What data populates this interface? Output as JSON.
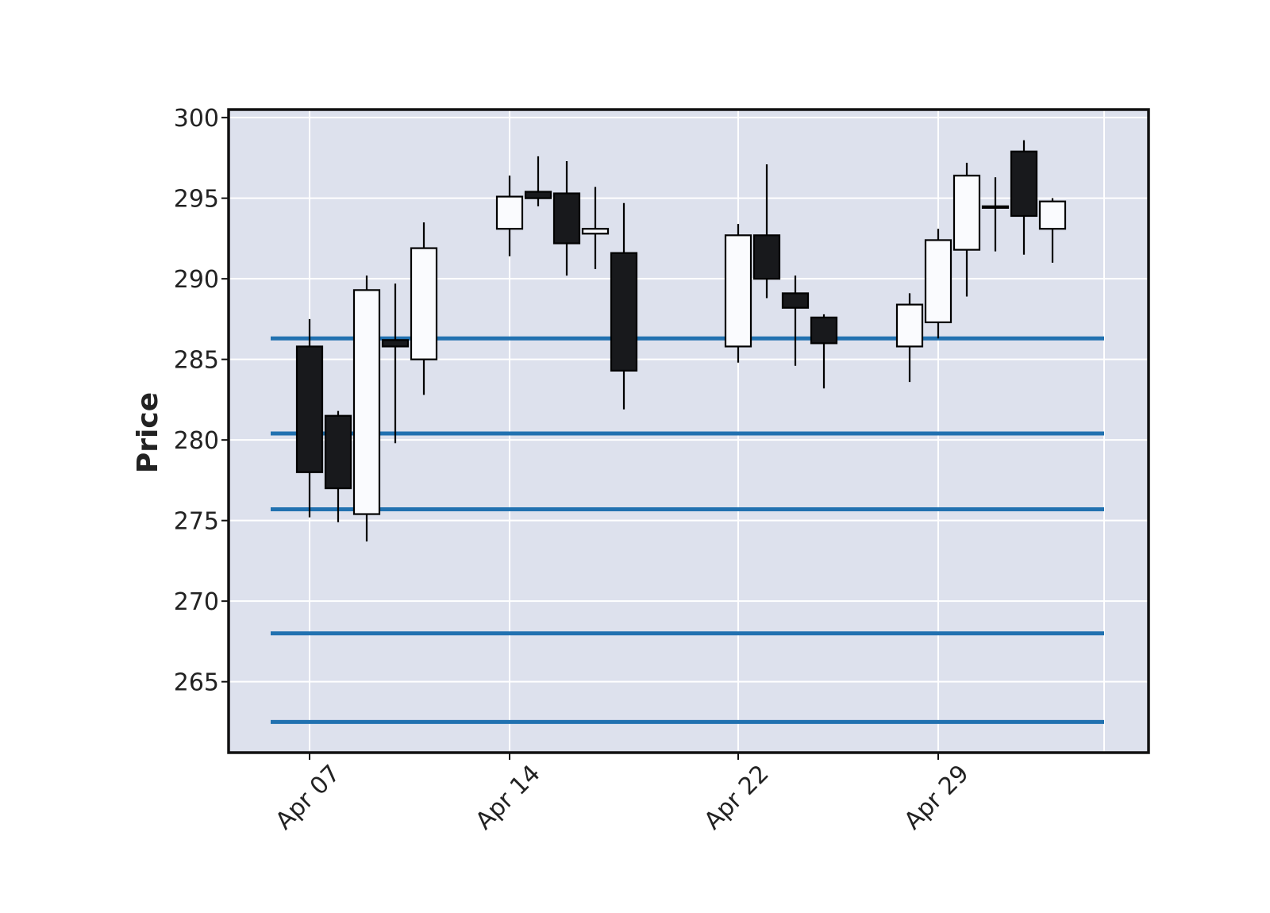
{
  "chart_data": {
    "type": "candlestick",
    "title": "",
    "xlabel": "",
    "ylabel": "Price",
    "ylim": [
      260.6,
      300.5
    ],
    "grid": true,
    "y_ticks": [
      265,
      270,
      275,
      280,
      285,
      290,
      295,
      300
    ],
    "x_ticks": [
      {
        "date": "2019-04-07",
        "label": "Apr 07"
      },
      {
        "date": "2019-04-14",
        "label": "Apr 14"
      },
      {
        "date": "2019-04-22",
        "label": "Apr 22"
      },
      {
        "date": "2019-04-29",
        "label": "Apr 29"
      }
    ],
    "candles": [
      {
        "date": "2019-04-07",
        "open": 285.8,
        "high": 287.5,
        "low": 275.2,
        "close": 278.0
      },
      {
        "date": "2019-04-08",
        "open": 281.5,
        "high": 281.8,
        "low": 274.9,
        "close": 277.0
      },
      {
        "date": "2019-04-09",
        "open": 275.4,
        "high": 290.2,
        "low": 273.7,
        "close": 289.3
      },
      {
        "date": "2019-04-10",
        "open": 286.2,
        "high": 289.7,
        "low": 279.8,
        "close": 285.8
      },
      {
        "date": "2019-04-11",
        "open": 285.0,
        "high": 293.5,
        "low": 282.8,
        "close": 291.9
      },
      {
        "date": "2019-04-14",
        "open": 293.1,
        "high": 296.4,
        "low": 291.4,
        "close": 295.1
      },
      {
        "date": "2019-04-15",
        "open": 295.4,
        "high": 297.6,
        "low": 294.5,
        "close": 295.0
      },
      {
        "date": "2019-04-16",
        "open": 295.3,
        "high": 297.3,
        "low": 290.2,
        "close": 292.2
      },
      {
        "date": "2019-04-17",
        "open": 292.8,
        "high": 295.7,
        "low": 290.6,
        "close": 293.1
      },
      {
        "date": "2019-04-18",
        "open": 291.6,
        "high": 294.7,
        "low": 281.9,
        "close": 284.3
      },
      {
        "date": "2019-04-22",
        "open": 285.8,
        "high": 293.4,
        "low": 284.8,
        "close": 292.7
      },
      {
        "date": "2019-04-23",
        "open": 292.7,
        "high": 297.1,
        "low": 288.8,
        "close": 290.0
      },
      {
        "date": "2019-04-24",
        "open": 289.1,
        "high": 290.2,
        "low": 284.6,
        "close": 288.2
      },
      {
        "date": "2019-04-25",
        "open": 287.6,
        "high": 287.8,
        "low": 283.2,
        "close": 286.0
      },
      {
        "date": "2019-04-28",
        "open": 285.8,
        "high": 289.1,
        "low": 283.6,
        "close": 288.4
      },
      {
        "date": "2019-04-29",
        "open": 287.3,
        "high": 293.1,
        "low": 286.3,
        "close": 292.4
      },
      {
        "date": "2019-04-30",
        "open": 291.8,
        "high": 297.2,
        "low": 288.9,
        "close": 296.4
      },
      {
        "date": "2019-05-01",
        "open": 294.5,
        "high": 296.3,
        "low": 291.7,
        "close": 294.4
      },
      {
        "date": "2019-05-02",
        "open": 297.9,
        "high": 298.6,
        "low": 291.5,
        "close": 293.9
      },
      {
        "date": "2019-05-03",
        "open": 293.1,
        "high": 295.0,
        "low": 291.0,
        "close": 294.8
      }
    ],
    "hlines": [
      286.3,
      280.4,
      275.7,
      268.0,
      262.5
    ],
    "colors": {
      "background": "#dde1ed",
      "grid": "#ffffff",
      "up_body": "#fafbfe",
      "down_body": "#18191c",
      "hline": "#2171b0",
      "frame": "#111111"
    }
  }
}
